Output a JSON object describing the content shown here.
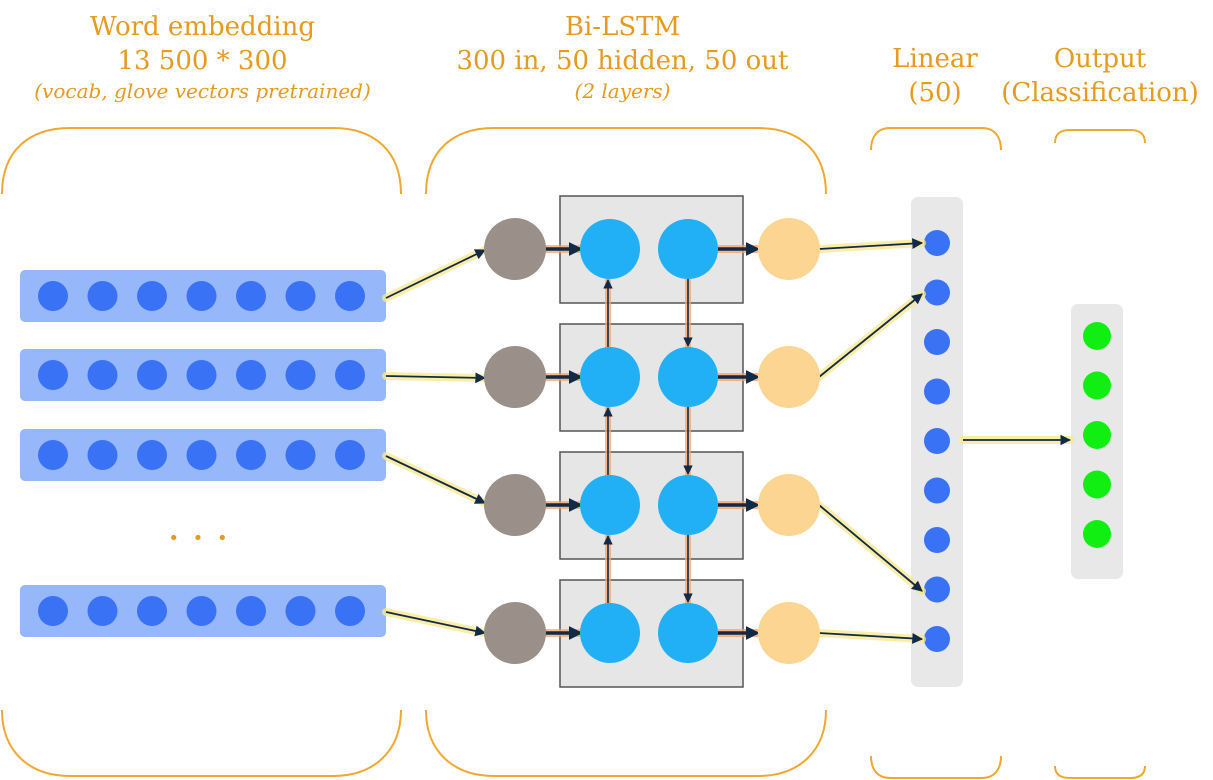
{
  "embedding": {
    "title": "Word embedding",
    "size": "13 500 * 300",
    "note": "(vocab, glove vectors pretrained)",
    "ellipsis": "• • •",
    "rows_drawn": 4,
    "dots_per_row": 7
  },
  "bilstm": {
    "title": "Bi-LSTM",
    "config": "300 in, 50 hidden, 50 out",
    "note": "(2 layers)",
    "cells": 4
  },
  "linear": {
    "title": "Linear",
    "size": "(50)",
    "nodes_drawn": 9
  },
  "output": {
    "title": "Output",
    "subtitle": "(Classification)",
    "nodes_drawn": 5
  },
  "colors": {
    "title_orange": "#e69a1e",
    "bracket_orange": "#f0a830",
    "embedding_bar": "#97b7fb",
    "embedding_dot": "#3a72f5",
    "input_node": "#9b8f8a",
    "lstm_node": "#21b0f5",
    "lstm_cell_fill": "#e6e6e6",
    "lstm_out_node": "#fcd592",
    "linear_panel": "#e8e8e8",
    "linear_dot": "#3a72f5",
    "output_dot": "#11ee11",
    "arrow": "#102a47",
    "glow_yellow": "#fbe98a",
    "glow_orange": "#f7a46b"
  }
}
